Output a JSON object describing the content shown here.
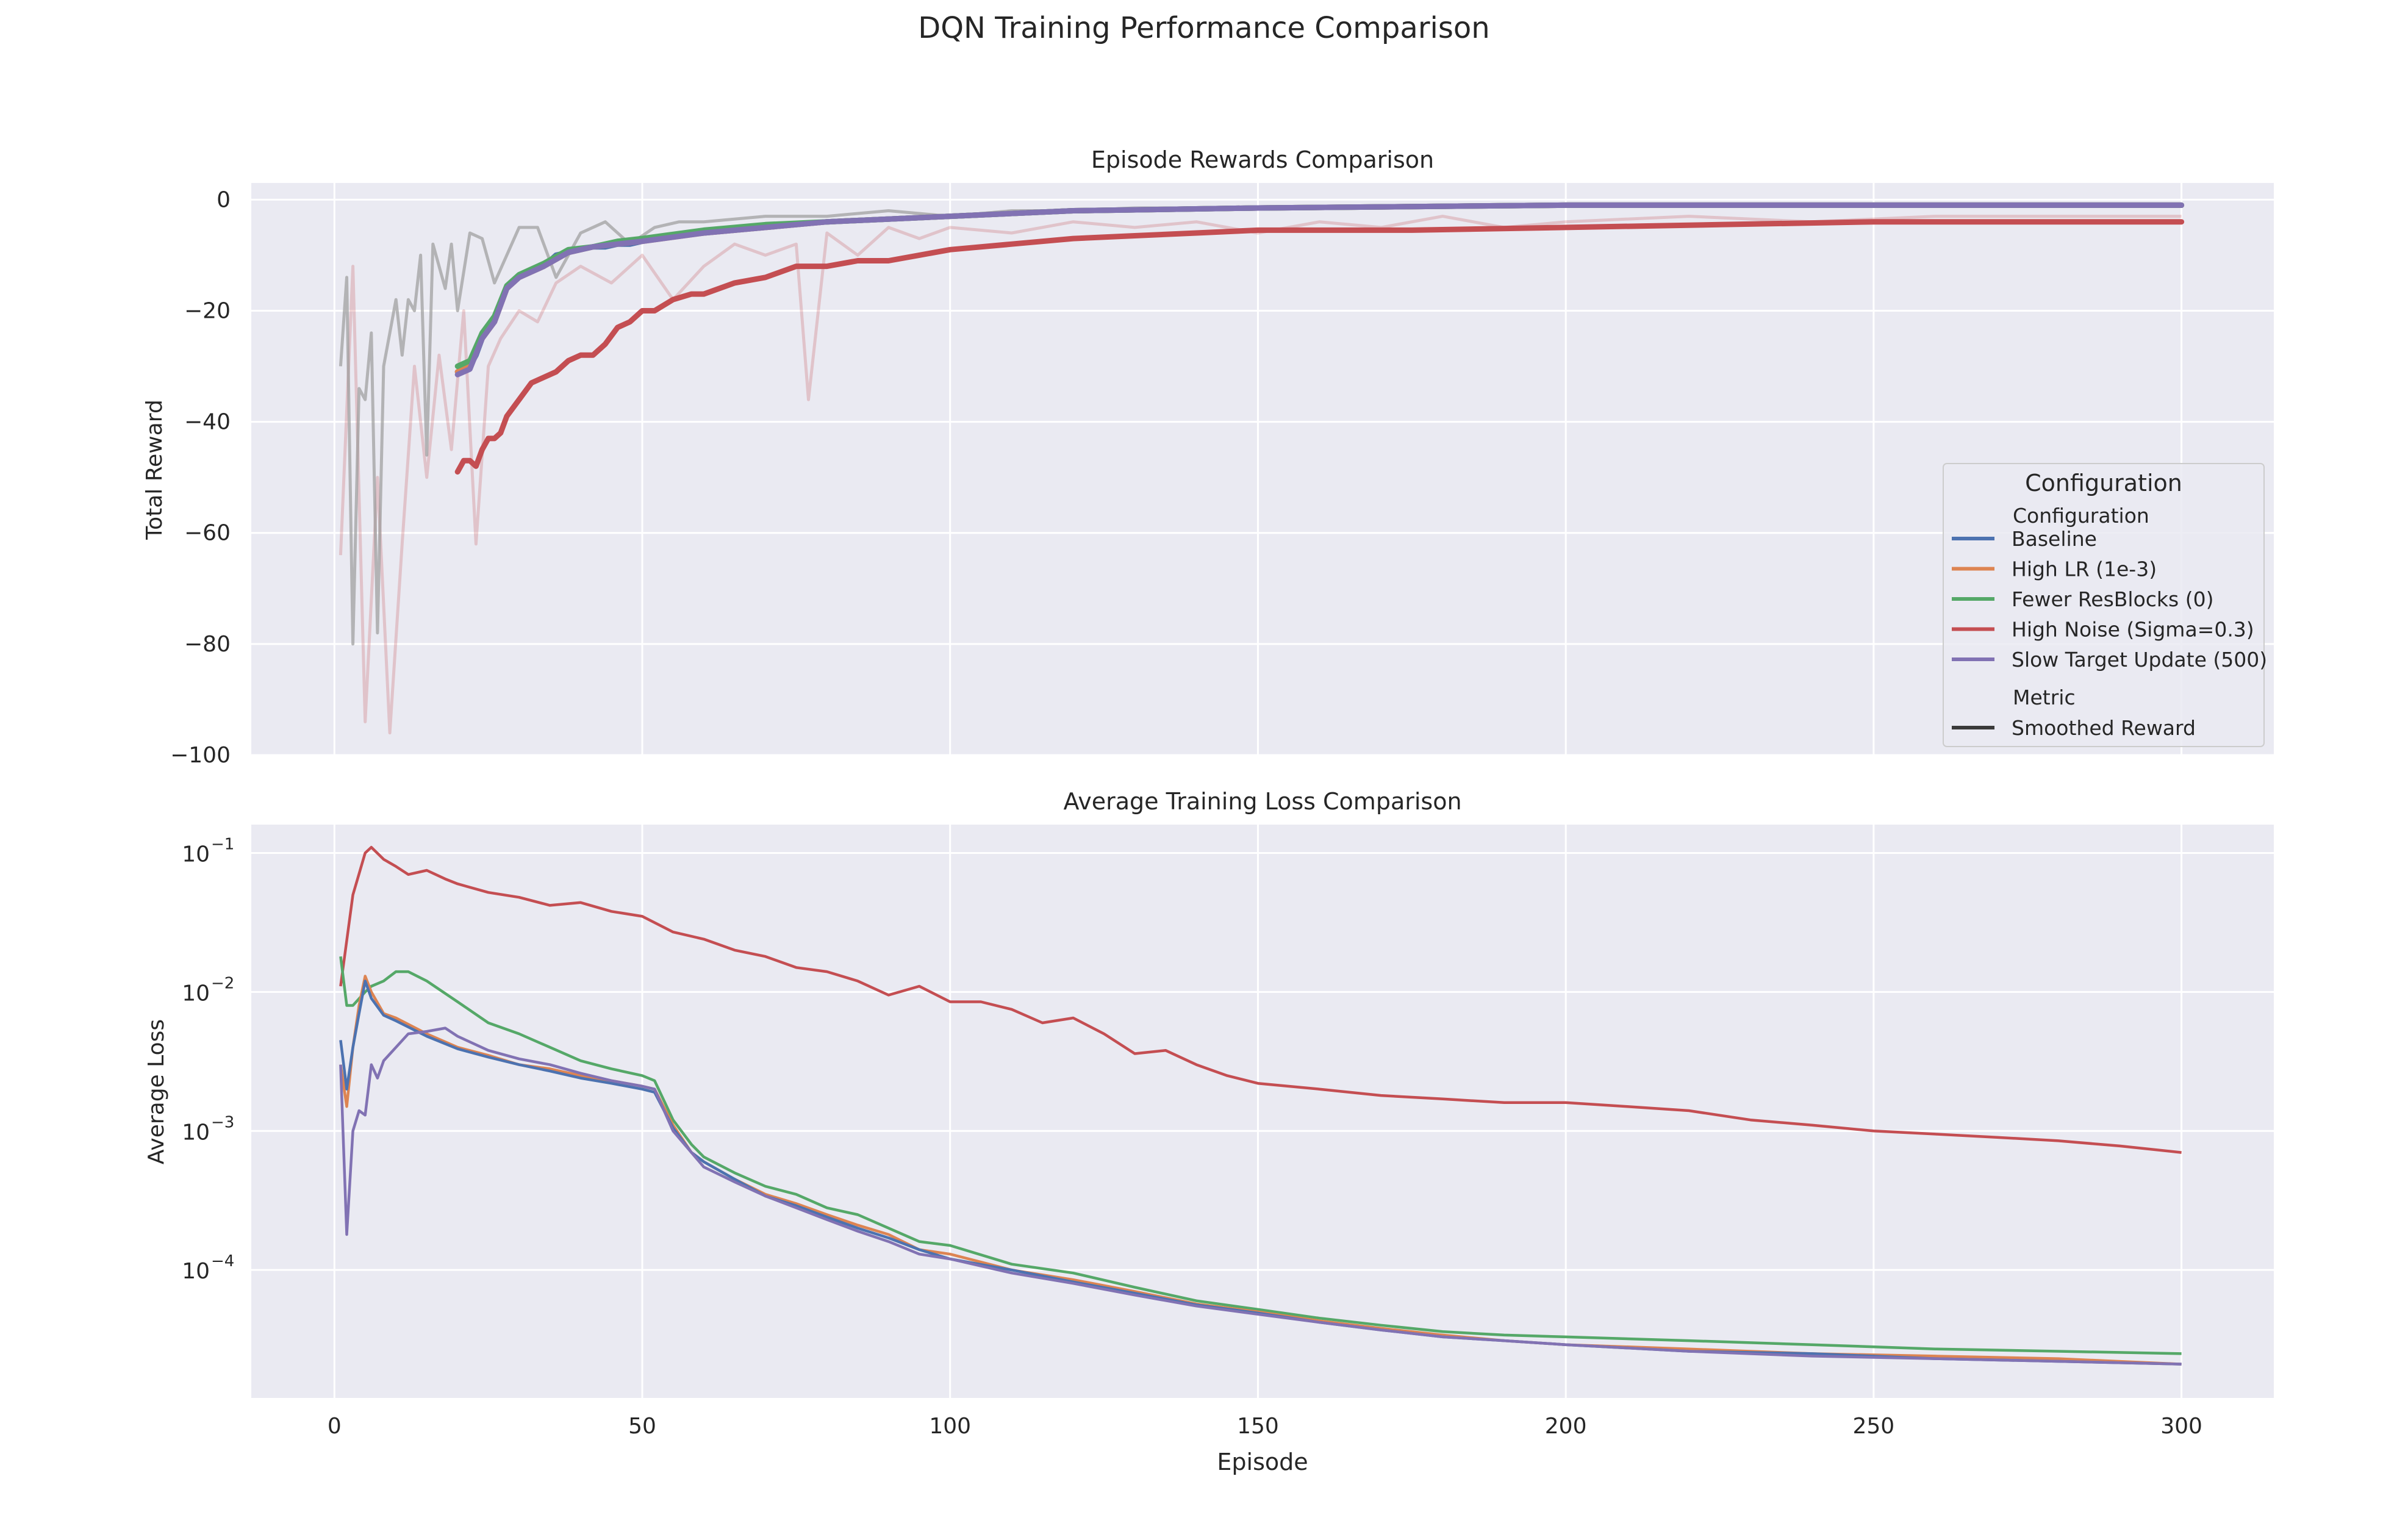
{
  "figure_title": "DQN Training Performance Comparison",
  "colors": {
    "Baseline": "#4c72b0",
    "High LR (1e-3)": "#dd8452",
    "Fewer ResBlocks (0)": "#55a868",
    "High Noise (Sigma=0.3)": "#c44e52",
    "Slow Target Update (500)": "#8172b3",
    "raw": "#9b9b9b",
    "axes_bg": "#eaeaf2",
    "grid": "#ffffff"
  },
  "legend": {
    "title": "Configuration",
    "subtitle_config": "Configuration",
    "subtitle_metric": "Metric",
    "items": [
      "Baseline",
      "High LR (1e-3)",
      "Fewer ResBlocks (0)",
      "High Noise (Sigma=0.3)",
      "Slow Target Update (500)"
    ],
    "metric_item": "Smoothed Reward"
  },
  "chart_data": [
    {
      "type": "line",
      "title": "Episode Rewards Comparison",
      "xlabel": "",
      "ylabel": "Total Reward",
      "xlim": [
        -13.5,
        315
      ],
      "ylim": [
        -100,
        3
      ],
      "yticks": [
        0,
        -20,
        -40,
        -60,
        -80,
        -100
      ],
      "ytick_labels": [
        "0",
        "−20",
        "−40",
        "−60",
        "−80",
        "−100"
      ],
      "xticks": [
        0,
        50,
        100,
        150,
        200,
        250,
        300
      ],
      "raw_series": [
        {
          "name": "High Noise (Sigma=0.3)",
          "x": [
            1,
            3,
            5,
            7,
            9,
            11,
            13,
            15,
            17,
            19,
            21,
            23,
            25,
            27,
            30,
            33,
            36,
            40,
            45,
            50,
            55,
            60,
            65,
            70,
            75,
            77,
            80,
            85,
            90,
            95,
            100,
            110,
            120,
            130,
            140,
            150,
            160,
            170,
            180,
            190,
            200,
            220,
            240,
            260,
            280,
            300
          ],
          "y": [
            -64,
            -12,
            -94,
            -50,
            -96,
            -62,
            -30,
            -50,
            -28,
            -45,
            -20,
            -62,
            -30,
            -25,
            -20,
            -22,
            -15,
            -12,
            -15,
            -10,
            -18,
            -12,
            -8,
            -10,
            -8,
            -36,
            -6,
            -10,
            -5,
            -7,
            -5,
            -6,
            -4,
            -5,
            -4,
            -6,
            -4,
            -5,
            -3,
            -5,
            -4,
            -3,
            -4,
            -3,
            -3,
            -3
          ]
        },
        {
          "name": "Baseline",
          "x": [
            1,
            2,
            3,
            4,
            5,
            6,
            7,
            8,
            9,
            10,
            11,
            12,
            13,
            14,
            15,
            16,
            17,
            18,
            19,
            20,
            22,
            24,
            26,
            28,
            30,
            33,
            36,
            40,
            44,
            48,
            52,
            56,
            60,
            70,
            80,
            90,
            100,
            110,
            120,
            130,
            150,
            200,
            250,
            300
          ],
          "y": [
            -30,
            -14,
            -80,
            -34,
            -36,
            -24,
            -78,
            -30,
            -24,
            -18,
            -28,
            -18,
            -20,
            -10,
            -46,
            -8,
            -12,
            -16,
            -8,
            -20,
            -6,
            -7,
            -15,
            -10,
            -5,
            -5,
            -14,
            -6,
            -4,
            -8,
            -5,
            -4,
            -4,
            -3,
            -3,
            -2,
            -3,
            -2,
            -2,
            -1.5,
            -1.5,
            -1,
            -1,
            -1
          ]
        }
      ],
      "series": [
        {
          "name": "Baseline",
          "x": [
            20,
            21,
            22,
            23,
            24,
            25,
            26,
            27,
            28,
            29,
            30,
            32,
            34,
            36,
            38,
            40,
            42,
            44,
            46,
            48,
            50,
            55,
            60,
            70,
            80,
            90,
            100,
            120,
            150,
            200,
            250,
            300
          ],
          "y": [
            -31,
            -30.5,
            -30,
            -28,
            -25,
            -23,
            -22,
            -19,
            -16,
            -15,
            -14,
            -13,
            -12,
            -10,
            -9.5,
            -9,
            -8.5,
            -8.5,
            -8,
            -8,
            -7.5,
            -6.5,
            -6,
            -5,
            -4,
            -3.5,
            -3,
            -2,
            -1.5,
            -1,
            -1,
            -1
          ]
        },
        {
          "name": "High LR (1e-3)",
          "x": [
            20,
            22,
            24,
            26,
            28,
            30,
            34,
            38,
            42,
            46,
            50,
            60,
            70,
            80,
            100,
            120,
            150,
            200,
            250,
            300
          ],
          "y": [
            -31,
            -30,
            -25,
            -22,
            -16,
            -14,
            -12,
            -9.5,
            -8.5,
            -8,
            -7.5,
            -6,
            -5,
            -4,
            -3,
            -2,
            -1.5,
            -1,
            -1,
            -1
          ]
        },
        {
          "name": "Fewer ResBlocks (0)",
          "x": [
            20,
            22,
            24,
            26,
            28,
            30,
            34,
            38,
            42,
            46,
            50,
            60,
            70,
            80,
            100,
            120,
            150,
            200,
            250,
            300
          ],
          "y": [
            -30,
            -29,
            -24,
            -21,
            -15.5,
            -13.5,
            -11.5,
            -9,
            -8.5,
            -7.5,
            -7,
            -5.5,
            -4.5,
            -4,
            -3,
            -2,
            -1.5,
            -1,
            -1,
            -1
          ]
        },
        {
          "name": "Slow Target Update (500)",
          "x": [
            20,
            22,
            24,
            26,
            28,
            30,
            34,
            38,
            42,
            46,
            50,
            60,
            70,
            80,
            100,
            120,
            150,
            200,
            250,
            300
          ],
          "y": [
            -31.5,
            -30.5,
            -25,
            -22,
            -16,
            -14,
            -12,
            -9.5,
            -8.5,
            -8,
            -7.5,
            -6,
            -5,
            -4,
            -3,
            -2,
            -1.5,
            -1,
            -1,
            -1
          ]
        },
        {
          "name": "High Noise (Sigma=0.3)",
          "x": [
            20,
            21,
            22,
            23,
            24,
            25,
            26,
            27,
            28,
            30,
            32,
            34,
            36,
            38,
            40,
            42,
            44,
            46,
            48,
            50,
            52,
            55,
            58,
            60,
            65,
            70,
            75,
            80,
            85,
            90,
            95,
            100,
            110,
            120,
            130,
            140,
            150,
            175,
            200,
            225,
            250,
            275,
            300
          ],
          "y": [
            -49,
            -47,
            -47,
            -48,
            -45,
            -43,
            -43,
            -42,
            -39,
            -36,
            -33,
            -32,
            -31,
            -29,
            -28,
            -28,
            -26,
            -23,
            -22,
            -20,
            -20,
            -18,
            -17,
            -17,
            -15,
            -14,
            -12,
            -12,
            -11,
            -11,
            -10,
            -9,
            -8,
            -7,
            -6.5,
            -6,
            -5.5,
            -5.5,
            -5,
            -4.5,
            -4,
            -4,
            -4
          ]
        }
      ]
    },
    {
      "type": "line",
      "title": "Average Training Loss Comparison",
      "xlabel": "Episode",
      "ylabel": "Average Loss",
      "yscale": "log",
      "xlim": [
        -13.5,
        315
      ],
      "ylim": [
        1.2e-05,
        0.16
      ],
      "xticks": [
        0,
        50,
        100,
        150,
        200,
        250,
        300
      ],
      "xtick_labels": [
        "0",
        "50",
        "100",
        "150",
        "200",
        "250",
        "300"
      ],
      "yticks": [
        0.1,
        0.01,
        0.001,
        0.0001
      ],
      "ytick_labels": [
        {
          "base": "10",
          "exp": "−1"
        },
        {
          "base": "10",
          "exp": "−2"
        },
        {
          "base": "10",
          "exp": "−3"
        },
        {
          "base": "10",
          "exp": "−4"
        }
      ],
      "series": [
        {
          "name": "High Noise (Sigma=0.3)",
          "x": [
            1,
            3,
            5,
            6,
            8,
            10,
            12,
            15,
            18,
            20,
            25,
            30,
            35,
            40,
            45,
            50,
            55,
            60,
            65,
            70,
            75,
            80,
            85,
            90,
            95,
            100,
            105,
            110,
            115,
            120,
            125,
            130,
            135,
            140,
            145,
            150,
            160,
            170,
            180,
            190,
            200,
            210,
            220,
            230,
            240,
            250,
            260,
            270,
            280,
            290,
            300
          ],
          "y": [
            0.011,
            0.05,
            0.1,
            0.11,
            0.09,
            0.08,
            0.07,
            0.075,
            0.065,
            0.06,
            0.052,
            0.048,
            0.042,
            0.044,
            0.038,
            0.035,
            0.027,
            0.024,
            0.02,
            0.018,
            0.015,
            0.014,
            0.012,
            0.0095,
            0.011,
            0.0085,
            0.0085,
            0.0075,
            0.006,
            0.0065,
            0.005,
            0.0036,
            0.0038,
            0.003,
            0.0025,
            0.0022,
            0.002,
            0.0018,
            0.0017,
            0.0016,
            0.0016,
            0.0015,
            0.0014,
            0.0012,
            0.0011,
            0.001,
            0.00095,
            0.0009,
            0.00085,
            0.00078,
            0.0007
          ]
        },
        {
          "name": "Fewer ResBlocks (0)",
          "x": [
            1,
            2,
            3,
            5,
            6,
            8,
            10,
            12,
            15,
            20,
            25,
            30,
            35,
            40,
            45,
            50,
            52,
            55,
            58,
            60,
            65,
            70,
            75,
            80,
            85,
            90,
            95,
            100,
            110,
            120,
            130,
            140,
            150,
            160,
            170,
            180,
            190,
            200,
            220,
            240,
            260,
            280,
            300
          ],
          "y": [
            0.018,
            0.008,
            0.008,
            0.01,
            0.011,
            0.012,
            0.014,
            0.014,
            0.012,
            0.0085,
            0.006,
            0.005,
            0.004,
            0.0032,
            0.0028,
            0.0025,
            0.0023,
            0.0012,
            0.0008,
            0.00065,
            0.0005,
            0.0004,
            0.00035,
            0.00028,
            0.00025,
            0.0002,
            0.00016,
            0.00015,
            0.00011,
            9.5e-05,
            7.5e-05,
            6e-05,
            5.2e-05,
            4.5e-05,
            4e-05,
            3.6e-05,
            3.4e-05,
            3.3e-05,
            3.1e-05,
            2.9e-05,
            2.7e-05,
            2.6e-05,
            2.5e-05
          ]
        },
        {
          "name": "High LR (1e-3)",
          "x": [
            1,
            2,
            3,
            4,
            5,
            6,
            8,
            10,
            15,
            20,
            25,
            30,
            35,
            40,
            45,
            50,
            52,
            55,
            58,
            60,
            65,
            70,
            75,
            80,
            85,
            90,
            95,
            100,
            110,
            120,
            130,
            140,
            150,
            160,
            170,
            180,
            190,
            200,
            220,
            240,
            260,
            280,
            300
          ],
          "y": [
            0.003,
            0.0015,
            0.004,
            0.008,
            0.013,
            0.01,
            0.007,
            0.0065,
            0.005,
            0.004,
            0.0035,
            0.003,
            0.0028,
            0.0025,
            0.0023,
            0.0021,
            0.002,
            0.0011,
            0.0007,
            0.0006,
            0.00045,
            0.00035,
            0.0003,
            0.00025,
            0.00021,
            0.00018,
            0.00014,
            0.00013,
            0.0001,
            8.5e-05,
            7e-05,
            5.7e-05,
            5e-05,
            4.3e-05,
            3.8e-05,
            3.4e-05,
            3.1e-05,
            2.9e-05,
            2.7e-05,
            2.5e-05,
            2.4e-05,
            2.3e-05,
            2.1e-05
          ]
        },
        {
          "name": "Baseline",
          "x": [
            1,
            2,
            3,
            4,
            5,
            6,
            8,
            10,
            15,
            20,
            25,
            30,
            35,
            40,
            45,
            50,
            52,
            55,
            58,
            60,
            65,
            70,
            75,
            80,
            85,
            90,
            95,
            100,
            110,
            120,
            130,
            140,
            150,
            160,
            170,
            180,
            190,
            200,
            220,
            240,
            260,
            280,
            300
          ],
          "y": [
            0.0045,
            0.002,
            0.004,
            0.007,
            0.012,
            0.009,
            0.0068,
            0.0062,
            0.0048,
            0.0039,
            0.0034,
            0.003,
            0.0027,
            0.0024,
            0.0022,
            0.002,
            0.0019,
            0.00105,
            0.0007,
            0.0006,
            0.00045,
            0.00034,
            0.00029,
            0.00024,
            0.0002,
            0.00017,
            0.00014,
            0.00012,
            0.0001,
            8.2e-05,
            6.8e-05,
            5.6e-05,
            4.9e-05,
            4.2e-05,
            3.7e-05,
            3.3e-05,
            3.1e-05,
            2.9e-05,
            2.6e-05,
            2.5e-05,
            2.3e-05,
            2.2e-05,
            2.1e-05
          ]
        },
        {
          "name": "Slow Target Update (500)",
          "x": [
            1,
            2,
            3,
            4,
            5,
            6,
            7,
            8,
            10,
            12,
            15,
            18,
            20,
            25,
            30,
            35,
            40,
            45,
            50,
            52,
            55,
            58,
            60,
            65,
            70,
            75,
            80,
            85,
            90,
            95,
            100,
            110,
            120,
            130,
            140,
            150,
            160,
            170,
            180,
            190,
            200,
            220,
            240,
            260,
            280,
            300
          ],
          "y": [
            0.003,
            0.00018,
            0.001,
            0.0014,
            0.0013,
            0.003,
            0.0024,
            0.0032,
            0.004,
            0.005,
            0.0052,
            0.0055,
            0.0048,
            0.0038,
            0.0033,
            0.003,
            0.0026,
            0.0023,
            0.0021,
            0.002,
            0.001,
            0.0007,
            0.00055,
            0.00043,
            0.00034,
            0.00028,
            0.00023,
            0.00019,
            0.00016,
            0.00013,
            0.00012,
            9.5e-05,
            8e-05,
            6.6e-05,
            5.5e-05,
            4.8e-05,
            4.2e-05,
            3.7e-05,
            3.3e-05,
            3.1e-05,
            2.9e-05,
            2.6e-05,
            2.4e-05,
            2.3e-05,
            2.2e-05,
            2.1e-05
          ]
        }
      ]
    }
  ]
}
